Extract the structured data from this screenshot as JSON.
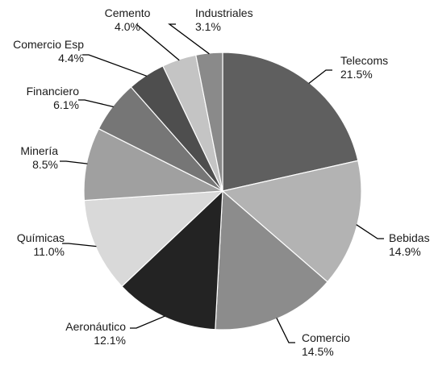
{
  "chart_data": {
    "type": "pie",
    "title": "",
    "slices": [
      {
        "label": "Telecoms",
        "value": 21.5,
        "pct": "21.5%",
        "color": "#5f5f5f"
      },
      {
        "label": "Bebidas",
        "value": 14.9,
        "pct": "14.9%",
        "color": "#b3b3b3"
      },
      {
        "label": "Comercio",
        "value": 14.5,
        "pct": "14.5%",
        "color": "#8c8c8c"
      },
      {
        "label": "Aeronáutico",
        "value": 12.1,
        "pct": "12.1%",
        "color": "#232323"
      },
      {
        "label": "Químicas",
        "value": 11.0,
        "pct": "11.0%",
        "color": "#d9d9d9"
      },
      {
        "label": "Minería",
        "value": 8.5,
        "pct": "8.5%",
        "color": "#a0a0a0"
      },
      {
        "label": "Financiero",
        "value": 6.1,
        "pct": "6.1%",
        "color": "#767676"
      },
      {
        "label": "Comercio Esp",
        "value": 4.4,
        "pct": "4.4%",
        "color": "#4e4e4e"
      },
      {
        "label": "Cemento",
        "value": 4.0,
        "pct": "4.0%",
        "color": "#c4c4c4"
      },
      {
        "label": "Industriales",
        "value": 3.1,
        "pct": "3.1%",
        "color": "#8a8a8a"
      }
    ],
    "start": "12 o'clock",
    "direction": "clockwise",
    "slice_border_color": "#ffffff",
    "leader_line_color": "#000000"
  }
}
